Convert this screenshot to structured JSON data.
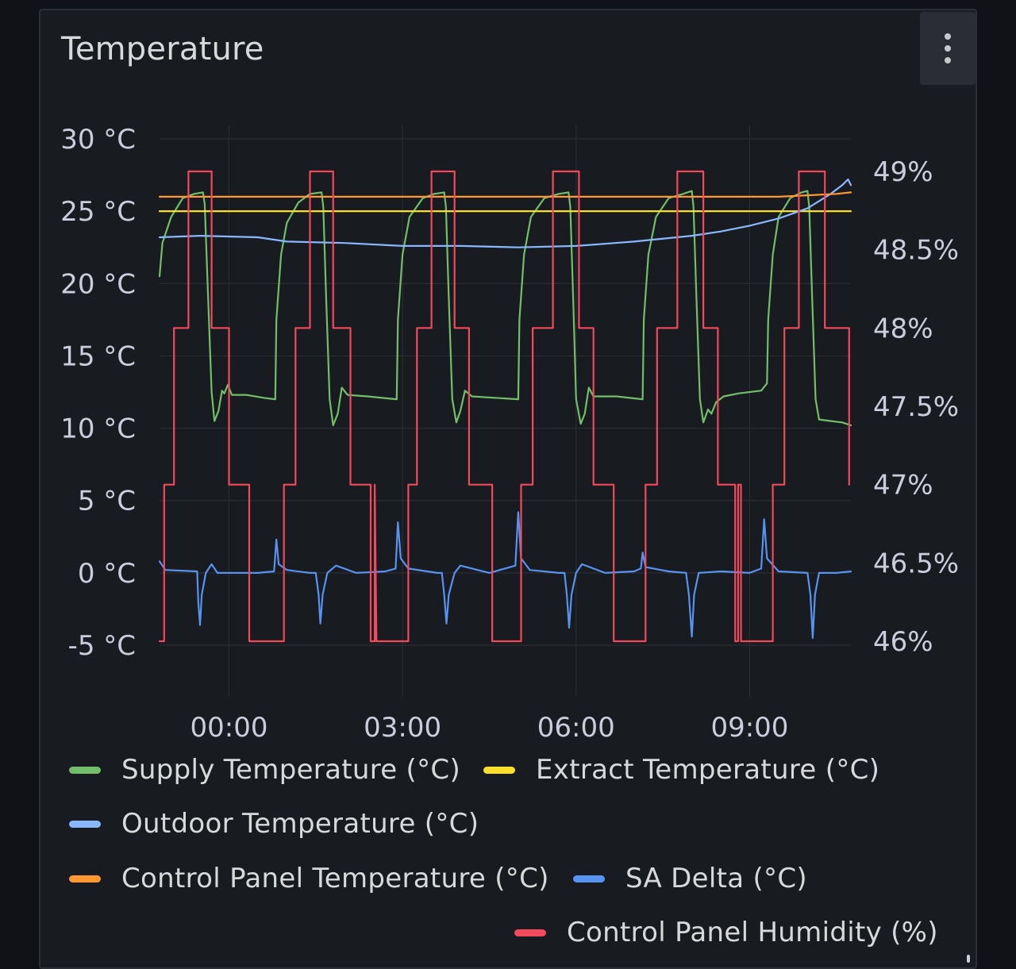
{
  "panel": {
    "title": "Temperature",
    "menu_icon": "kebab-vertical-icon"
  },
  "chart_data": {
    "type": "line",
    "title": "Temperature",
    "x_ticks": [
      "00:00",
      "03:00",
      "06:00",
      "09:00"
    ],
    "x_range_hours": [
      -1.2,
      10.75
    ],
    "y_left": {
      "unit": "°C",
      "range": [
        -5,
        30
      ],
      "tick_values": [
        30,
        25,
        20,
        15,
        10,
        5,
        0,
        -5
      ],
      "tick_labels": [
        "30 °C",
        "25 °C",
        "20 °C",
        "15 °C",
        "10 °C",
        "5 °C",
        "0 °C",
        "-5 °C"
      ]
    },
    "y_right": {
      "unit": "%",
      "range": [
        46,
        49
      ],
      "tick_values": [
        49,
        48.5,
        48,
        47.5,
        47,
        46.5,
        46
      ],
      "tick_labels": [
        "49%",
        "48.5%",
        "48%",
        "47.5%",
        "47%",
        "46.5%",
        "46%"
      ]
    },
    "grid": true,
    "legend_position": "bottom",
    "series": [
      {
        "name": "Supply Temperature (°C)",
        "axis": "left",
        "color": "#73bf69",
        "points": [
          [
            -1.2,
            20.5
          ],
          [
            -1.15,
            22.8
          ],
          [
            -1.0,
            24.6
          ],
          [
            -0.8,
            25.9
          ],
          [
            -0.6,
            26.2
          ],
          [
            -0.45,
            26.3
          ],
          [
            -0.42,
            25.5
          ],
          [
            -0.36,
            19.0
          ],
          [
            -0.3,
            12.5
          ],
          [
            -0.25,
            10.5
          ],
          [
            -0.18,
            11.2
          ],
          [
            -0.12,
            12.6
          ],
          [
            -0.08,
            12.4
          ],
          [
            -0.02,
            13.0
          ],
          [
            0.05,
            12.3
          ],
          [
            0.3,
            12.3
          ],
          [
            0.6,
            12.1
          ],
          [
            0.8,
            12.0
          ],
          [
            0.82,
            17.5
          ],
          [
            0.9,
            22.0
          ],
          [
            1.0,
            24.2
          ],
          [
            1.2,
            25.6
          ],
          [
            1.4,
            26.2
          ],
          [
            1.6,
            26.3
          ],
          [
            1.63,
            25.3
          ],
          [
            1.68,
            19.0
          ],
          [
            1.74,
            12.0
          ],
          [
            1.8,
            10.2
          ],
          [
            1.88,
            11.0
          ],
          [
            1.95,
            12.8
          ],
          [
            2.05,
            12.3
          ],
          [
            2.4,
            12.2
          ],
          [
            2.9,
            12.0
          ],
          [
            2.92,
            17.5
          ],
          [
            3.0,
            22.0
          ],
          [
            3.12,
            24.6
          ],
          [
            3.35,
            25.9
          ],
          [
            3.55,
            26.2
          ],
          [
            3.72,
            26.3
          ],
          [
            3.75,
            25.3
          ],
          [
            3.8,
            19.0
          ],
          [
            3.86,
            12.0
          ],
          [
            3.93,
            10.4
          ],
          [
            4.0,
            11.2
          ],
          [
            4.08,
            12.6
          ],
          [
            4.2,
            12.2
          ],
          [
            4.6,
            12.1
          ],
          [
            5.0,
            12.0
          ],
          [
            5.02,
            17.5
          ],
          [
            5.1,
            22.0
          ],
          [
            5.22,
            24.6
          ],
          [
            5.45,
            25.9
          ],
          [
            5.7,
            26.2
          ],
          [
            5.87,
            26.3
          ],
          [
            5.9,
            25.3
          ],
          [
            5.95,
            19.0
          ],
          [
            6.0,
            12.0
          ],
          [
            6.08,
            10.3
          ],
          [
            6.15,
            11.0
          ],
          [
            6.22,
            12.8
          ],
          [
            6.3,
            12.2
          ],
          [
            6.7,
            12.2
          ],
          [
            7.15,
            12.0
          ],
          [
            7.17,
            17.5
          ],
          [
            7.25,
            22.0
          ],
          [
            7.38,
            24.6
          ],
          [
            7.6,
            25.9
          ],
          [
            7.85,
            26.2
          ],
          [
            8.0,
            26.4
          ],
          [
            8.03,
            25.3
          ],
          [
            8.08,
            19.0
          ],
          [
            8.14,
            12.0
          ],
          [
            8.2,
            10.4
          ],
          [
            8.28,
            11.3
          ],
          [
            8.34,
            11.0
          ],
          [
            8.42,
            11.8
          ],
          [
            8.55,
            12.2
          ],
          [
            8.8,
            12.4
          ],
          [
            9.2,
            12.6
          ],
          [
            9.3,
            13.1
          ],
          [
            9.32,
            17.5
          ],
          [
            9.4,
            22.0
          ],
          [
            9.5,
            24.6
          ],
          [
            9.7,
            25.9
          ],
          [
            9.9,
            26.3
          ],
          [
            10.0,
            26.4
          ],
          [
            10.03,
            25.3
          ],
          [
            10.08,
            19.0
          ],
          [
            10.14,
            12.0
          ],
          [
            10.2,
            10.6
          ],
          [
            10.4,
            10.5
          ],
          [
            10.6,
            10.4
          ],
          [
            10.75,
            10.2
          ]
        ]
      },
      {
        "name": "Extract Temperature (°C)",
        "axis": "left",
        "color": "#fade2a",
        "points": [
          [
            -1.2,
            25.0
          ],
          [
            10.75,
            25.0
          ]
        ]
      },
      {
        "name": "Outdoor Temperature (°C)",
        "axis": "left",
        "color": "#8ab8ff",
        "points": [
          [
            -1.2,
            23.2
          ],
          [
            -0.5,
            23.3
          ],
          [
            0.5,
            23.2
          ],
          [
            1.0,
            22.9
          ],
          [
            2.0,
            22.8
          ],
          [
            3.0,
            22.6
          ],
          [
            4.0,
            22.6
          ],
          [
            5.0,
            22.5
          ],
          [
            6.0,
            22.6
          ],
          [
            7.0,
            22.9
          ],
          [
            8.0,
            23.3
          ],
          [
            8.5,
            23.6
          ],
          [
            9.0,
            24.0
          ],
          [
            9.5,
            24.5
          ],
          [
            10.0,
            25.2
          ],
          [
            10.4,
            26.2
          ],
          [
            10.6,
            26.8
          ],
          [
            10.7,
            27.2
          ],
          [
            10.75,
            26.8
          ]
        ]
      },
      {
        "name": "Control Panel Temperature (°C)",
        "axis": "left",
        "color": "#ff9830",
        "points": [
          [
            -1.2,
            26.0
          ],
          [
            9.5,
            26.0
          ],
          [
            10.0,
            26.1
          ],
          [
            10.5,
            26.2
          ],
          [
            10.75,
            26.3
          ]
        ]
      },
      {
        "name": "SA Delta (°C)",
        "axis": "left",
        "color": "#5794f2",
        "points": [
          [
            -1.2,
            0.8
          ],
          [
            -1.1,
            0.2
          ],
          [
            -0.55,
            0.1
          ],
          [
            -0.53,
            -2.0
          ],
          [
            -0.5,
            -3.6
          ],
          [
            -0.47,
            -1.5
          ],
          [
            -0.4,
            0.0
          ],
          [
            -0.3,
            0.6
          ],
          [
            -0.2,
            0.0
          ],
          [
            0.0,
            0.0
          ],
          [
            0.5,
            0.0
          ],
          [
            0.78,
            0.1
          ],
          [
            0.82,
            2.3
          ],
          [
            0.86,
            0.6
          ],
          [
            1.0,
            0.2
          ],
          [
            1.4,
            0.0
          ],
          [
            1.5,
            0.0
          ],
          [
            1.55,
            -1.5
          ],
          [
            1.58,
            -3.5
          ],
          [
            1.62,
            -1.5
          ],
          [
            1.7,
            0.0
          ],
          [
            1.85,
            0.5
          ],
          [
            2.2,
            0.0
          ],
          [
            2.7,
            0.1
          ],
          [
            2.88,
            0.3
          ],
          [
            2.92,
            3.5
          ],
          [
            2.97,
            1.0
          ],
          [
            3.1,
            0.3
          ],
          [
            3.6,
            0.0
          ],
          [
            3.68,
            0.0
          ],
          [
            3.72,
            -1.5
          ],
          [
            3.76,
            -3.5
          ],
          [
            3.8,
            -1.5
          ],
          [
            3.9,
            0.0
          ],
          [
            4.0,
            0.5
          ],
          [
            4.5,
            0.0
          ],
          [
            4.95,
            0.5
          ],
          [
            5.0,
            4.2
          ],
          [
            5.05,
            1.0
          ],
          [
            5.2,
            0.2
          ],
          [
            5.7,
            0.0
          ],
          [
            5.8,
            0.0
          ],
          [
            5.84,
            -1.5
          ],
          [
            5.88,
            -3.8
          ],
          [
            5.92,
            -1.5
          ],
          [
            6.0,
            0.0
          ],
          [
            6.1,
            0.6
          ],
          [
            6.5,
            0.0
          ],
          [
            7.0,
            0.1
          ],
          [
            7.12,
            0.3
          ],
          [
            7.15,
            1.4
          ],
          [
            7.2,
            0.4
          ],
          [
            7.6,
            0.1
          ],
          [
            7.9,
            0.0
          ],
          [
            7.95,
            -1.5
          ],
          [
            8.0,
            -4.4
          ],
          [
            8.04,
            -1.5
          ],
          [
            8.12,
            0.0
          ],
          [
            8.5,
            0.1
          ],
          [
            9.0,
            0.0
          ],
          [
            9.2,
            0.3
          ],
          [
            9.25,
            3.7
          ],
          [
            9.3,
            1.0
          ],
          [
            9.5,
            0.1
          ],
          [
            10.0,
            0.0
          ],
          [
            10.05,
            -1.5
          ],
          [
            10.09,
            -4.5
          ],
          [
            10.13,
            -1.5
          ],
          [
            10.2,
            0.0
          ],
          [
            10.5,
            0.0
          ],
          [
            10.75,
            0.1
          ]
        ]
      },
      {
        "name": "Control Panel Humidity (%)",
        "axis": "right",
        "color": "#f2495c",
        "points": [
          [
            -1.2,
            46.0
          ],
          [
            -1.12,
            46.0
          ],
          [
            -1.12,
            47.0
          ],
          [
            -0.95,
            47.0
          ],
          [
            -0.95,
            48.0
          ],
          [
            -0.7,
            48.0
          ],
          [
            -0.7,
            49.0
          ],
          [
            -0.3,
            49.0
          ],
          [
            -0.3,
            48.0
          ],
          [
            0.0,
            48.0
          ],
          [
            0.0,
            47.0
          ],
          [
            0.35,
            47.0
          ],
          [
            0.35,
            46.0
          ],
          [
            0.95,
            46.0
          ],
          [
            0.95,
            47.0
          ],
          [
            1.15,
            47.0
          ],
          [
            1.15,
            48.0
          ],
          [
            1.4,
            48.0
          ],
          [
            1.4,
            49.0
          ],
          [
            1.8,
            49.0
          ],
          [
            1.8,
            48.0
          ],
          [
            2.1,
            48.0
          ],
          [
            2.1,
            47.0
          ],
          [
            2.45,
            47.0
          ],
          [
            2.45,
            46.0
          ],
          [
            2.52,
            46.0
          ],
          [
            2.52,
            47.0
          ],
          [
            2.55,
            46.0
          ],
          [
            3.1,
            46.0
          ],
          [
            3.1,
            47.0
          ],
          [
            3.25,
            47.0
          ],
          [
            3.25,
            48.0
          ],
          [
            3.5,
            48.0
          ],
          [
            3.5,
            49.0
          ],
          [
            3.9,
            49.0
          ],
          [
            3.9,
            48.0
          ],
          [
            4.15,
            48.0
          ],
          [
            4.15,
            47.0
          ],
          [
            4.55,
            47.0
          ],
          [
            4.55,
            46.0
          ],
          [
            5.05,
            46.0
          ],
          [
            5.05,
            47.0
          ],
          [
            5.25,
            47.0
          ],
          [
            5.25,
            48.0
          ],
          [
            5.6,
            48.0
          ],
          [
            5.6,
            49.0
          ],
          [
            6.05,
            49.0
          ],
          [
            6.05,
            48.0
          ],
          [
            6.3,
            48.0
          ],
          [
            6.3,
            47.0
          ],
          [
            6.65,
            47.0
          ],
          [
            6.65,
            46.0
          ],
          [
            7.2,
            46.0
          ],
          [
            7.2,
            47.0
          ],
          [
            7.4,
            47.0
          ],
          [
            7.4,
            48.0
          ],
          [
            7.75,
            48.0
          ],
          [
            7.75,
            49.0
          ],
          [
            8.2,
            49.0
          ],
          [
            8.2,
            48.0
          ],
          [
            8.45,
            48.0
          ],
          [
            8.45,
            47.0
          ],
          [
            8.75,
            47.0
          ],
          [
            8.75,
            46.0
          ],
          [
            8.8,
            46.0
          ],
          [
            8.8,
            47.0
          ],
          [
            8.85,
            47.0
          ],
          [
            8.85,
            46.0
          ],
          [
            9.4,
            46.0
          ],
          [
            9.4,
            47.0
          ],
          [
            9.6,
            47.0
          ],
          [
            9.6,
            48.0
          ],
          [
            9.85,
            48.0
          ],
          [
            9.85,
            49.0
          ],
          [
            10.3,
            49.0
          ],
          [
            10.3,
            48.0
          ],
          [
            10.72,
            48.0
          ],
          [
            10.72,
            47.0
          ]
        ]
      }
    ]
  }
}
